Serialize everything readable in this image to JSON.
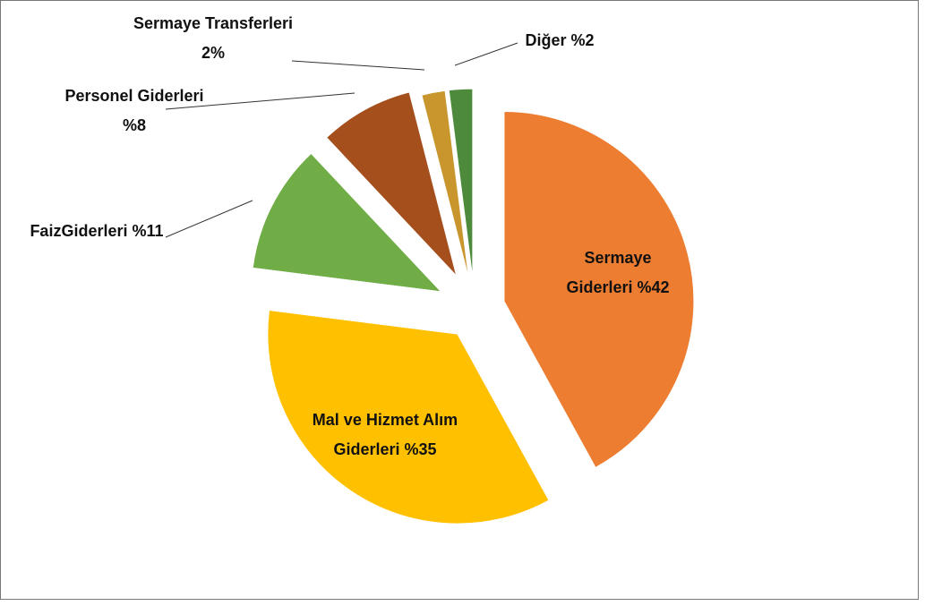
{
  "chart_data": {
    "type": "pie",
    "categories": [
      "Sermaye Giderleri",
      "Mal ve Hizmet Alım Giderleri",
      "FaizGiderleri",
      "Personel Giderleri",
      "Sermaye Transferleri",
      "Diğer"
    ],
    "values": [
      42,
      35,
      11,
      8,
      2,
      2
    ],
    "value_labels": [
      "%42",
      "%35",
      "%11",
      "%8",
      "2%",
      "%2"
    ],
    "colors": [
      "#ed7d31",
      "#ffc000",
      "#70ad47",
      "#a5501c",
      "#c9962e",
      "#4e8a3c"
    ]
  }
}
